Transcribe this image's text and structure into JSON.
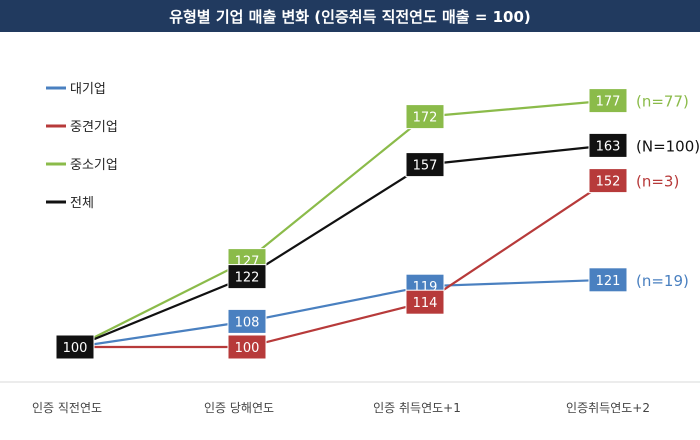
{
  "chart_data": {
    "type": "line",
    "title": "유형별 기업 매출 변화 (인증취득 직전연도 매출 = 100)",
    "categories": [
      "인증 직전연도",
      "인증 당해연도",
      "인증 취득연도+1",
      "인증취득연도+2"
    ],
    "series": [
      {
        "name": "대기업",
        "values": [
          100,
          108,
          119,
          121
        ],
        "color": "#4a80c0",
        "end_label": "(n=19)"
      },
      {
        "name": "중견기업",
        "values": [
          100,
          100,
          114,
          152
        ],
        "color": "#b73a3a",
        "end_label": "(n=3)"
      },
      {
        "name": "중소기업",
        "values": [
          100,
          127,
          172,
          177
        ],
        "color": "#8bbb4a",
        "end_label": "(n=77)"
      },
      {
        "name": "전체",
        "values": [
          100,
          122,
          157,
          163
        ],
        "color": "#111111",
        "end_label": "(N=100)"
      }
    ],
    "legend_position": "top-left",
    "grid": false
  }
}
